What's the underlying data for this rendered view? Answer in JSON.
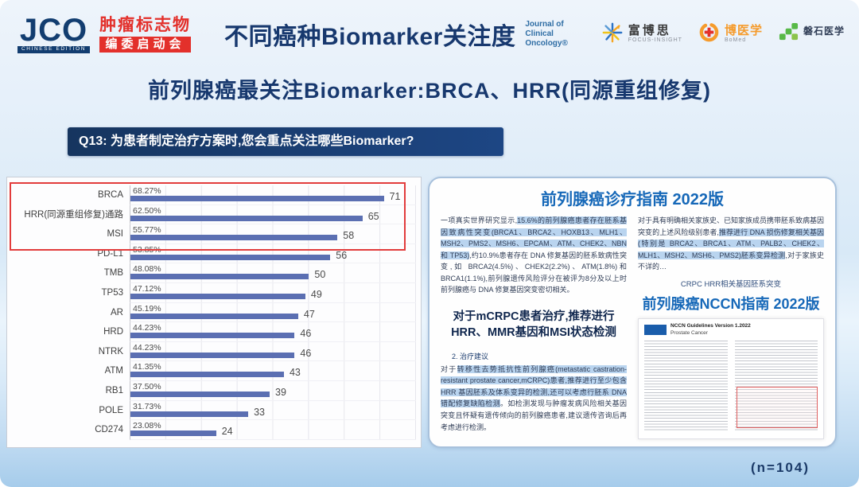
{
  "theme": {
    "navy": "#17386E",
    "red": "#E3302B",
    "doc_blue": "#1668B8",
    "highlight": "#B9D4EF"
  },
  "header": {
    "jco_logo": {
      "text": "JCO",
      "sub": "CHINESE EDITION"
    },
    "event_logo": {
      "line1": "肿瘤标志物",
      "line2": "编委启动会"
    },
    "title": "不同癌种Biomarker关注度",
    "journal_logo": {
      "line1": "Journal of",
      "line2": "Clinical",
      "line3": "Oncology®"
    },
    "partners": [
      {
        "name": "富博思",
        "sub": "FOCUS-INSIGHT"
      },
      {
        "name": "博医学",
        "sub": "BoMed"
      },
      {
        "name": "磐石医学",
        "sub": ""
      }
    ]
  },
  "subtitle": "前列腺癌最关注Biomarker:BRCA、HRR(同源重组修复)",
  "question": {
    "id": "Q13:",
    "text": "为患者制定治疗方案时,您会重点关注哪些Biomarker?"
  },
  "chart_data": {
    "type": "bar",
    "orientation": "horizontal",
    "categories": [
      "BRCA",
      "HRR(同源重组修复)通路",
      "MSI",
      "PD-L1",
      "TMB",
      "TP53",
      "AR",
      "HRD",
      "NTRK",
      "ATM",
      "RB1",
      "POLE",
      "CD274"
    ],
    "values": [
      71,
      65,
      58,
      56,
      50,
      49,
      47,
      46,
      46,
      43,
      39,
      33,
      24
    ],
    "percent_labels": [
      "68.27%",
      "62.50%",
      "55.77%",
      "53.85%",
      "48.08%",
      "47.12%",
      "45.19%",
      "44.23%",
      "44.23%",
      "41.35%",
      "37.50%",
      "31.73%",
      "23.08%"
    ],
    "xlim": [
      0,
      80
    ],
    "grid_step": 10,
    "grid": true,
    "legend": false,
    "bar_color": "#5B6FB2",
    "highlighted_categories": [
      "BRCA",
      "HRR(同源重组修复)通路",
      "MSI"
    ],
    "highlight_box_color": "#E23C3C"
  },
  "guidelines": {
    "doc1_title": "前列腺癌诊疗指南 2022版",
    "para1": [
      {
        "t": "一项真实世界研究显示,",
        "h": false
      },
      {
        "t": "15.6%的前列腺癌患者存在胚系基因致病性突变(BRCA1、BRCA2、HOXB13、MLH1、MSH2、PMS2、MSH6、EPCAM、ATM、CHEK2、NBN 和 TP53)",
        "h": true
      },
      {
        "t": ",约10.9%患者存在 DNA 修复基因的胚系致病性突变,如 BRCA2(4.5%)、CHEK2(2.2%)、ATM(1.8%)和 BRCA1(1.1%),前列腺遗传风险评分在被评为8分及以上时前列腺癌与 DNA 修复基因突变密切相关。",
        "h": false
      }
    ],
    "para3": [
      {
        "t": "对于具有明确相关家族史、已知家族成员携带胚系致病基因突变的上述风险级别患者,",
        "h": false
      },
      {
        "t": "推荐进行 DNA 损伤修复相关基因(特别是 BRCA2、BRCA1、ATM、PALB2、CHEK2、MLH1、MSH2、MSH6、PMS2)胚系变异检测",
        "h": true
      },
      {
        "t": ",对于家族史不详的…",
        "h": false
      }
    ],
    "mcrpc_heading": "对于mCRPC患者治疗,推荐进行HRR、MMR基因和MSI状态检测",
    "treatment_label": "2. 治疗建议",
    "para2": [
      {
        "t": "对于",
        "h": false
      },
      {
        "t": "转移性去势抵抗性前列腺癌(metastatic castration-resistant prostate cancer,mCRPC)患者,推荐进行至少包含 HRR 基因胚系及体系变异的检测,还可以考虑行胚系 DNA 错配修复缺陷检测",
        "h": true
      },
      {
        "t": "。如检测发现与肿瘤发病风险相关基因突变且怀疑有遗传倾向的前列腺癌患者,建议遗传咨询后再考虑进行检测。",
        "h": false
      }
    ],
    "crpc_note": "CRPC HRR相关基因胚系突变",
    "doc2_title": "前列腺癌NCCN指南 2022版",
    "nccn_header": "NCCN Guidelines Version 1.2022",
    "nccn_subheader": "Prostate Cancer"
  },
  "sample_size": "(n=104)"
}
